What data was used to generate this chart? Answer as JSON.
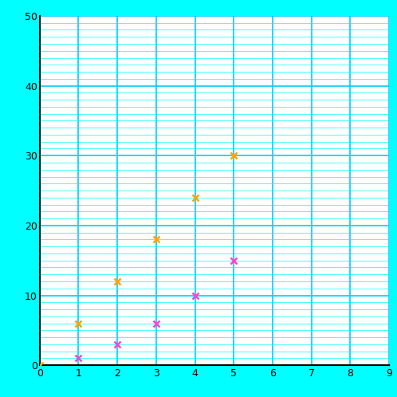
{
  "six_times_x": [
    0,
    1,
    2,
    3,
    4,
    5
  ],
  "six_times_y": [
    0,
    6,
    12,
    18,
    24,
    30
  ],
  "triangular_x": [
    1,
    2,
    3,
    4,
    5
  ],
  "triangular_y": [
    1,
    3,
    6,
    10,
    15
  ],
  "six_times_color": "#FFA500",
  "triangular_color": "#FF44CC",
  "xlim": [
    0,
    9
  ],
  "ylim": [
    0,
    50
  ],
  "xticks": [
    0,
    1,
    2,
    3,
    4,
    5,
    6,
    7,
    8,
    9
  ],
  "yticks": [
    0,
    10,
    20,
    30,
    40,
    50
  ],
  "minor_grid_color": "#00FFFF",
  "major_grid_color": "#00CCFF",
  "bg_color": "white",
  "fig_bg_color": "#00FFFF",
  "marker": "x",
  "marker_size": 6,
  "marker_linewidth": 1.8,
  "spine_color": "black",
  "spine_linewidth": 1.5,
  "tick_labelsize": 9
}
